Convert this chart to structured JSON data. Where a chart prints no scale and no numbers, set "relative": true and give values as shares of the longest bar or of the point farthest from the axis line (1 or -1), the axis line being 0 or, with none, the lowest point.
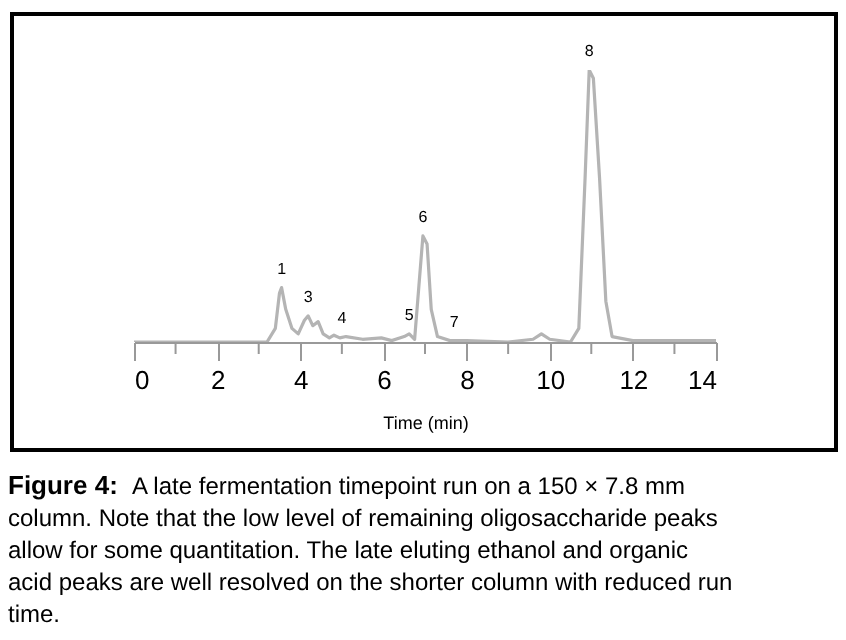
{
  "chart_data": {
    "type": "line",
    "relative": true,
    "xlabel": "Time (min)",
    "color": "#b4b4b4",
    "grid": false,
    "marker": "none",
    "line_style": "solid",
    "xlim": [
      0,
      14
    ],
    "xticks": [
      0,
      {
        "value": 1,
        "label": null
      },
      2,
      {
        "value": 3,
        "label": null
      },
      4,
      {
        "value": 5,
        "label": null
      },
      6,
      {
        "value": 7,
        "label": null
      },
      8,
      {
        "value": 9,
        "label": null
      },
      10,
      {
        "value": 11,
        "label": null
      },
      12,
      {
        "value": 13,
        "label": null
      },
      14
    ],
    "x": [
      0,
      3.2,
      3.4,
      3.5,
      3.55,
      3.65,
      3.8,
      3.95,
      4.1,
      4.19,
      4.3,
      4.43,
      4.55,
      4.7,
      4.81,
      4.95,
      5.1,
      5.5,
      5.95,
      6.2,
      6.5,
      6.62,
      6.75,
      6.85,
      6.95,
      7.05,
      7.15,
      7.3,
      7.6,
      8,
      9,
      9.6,
      9.8,
      10.0,
      10.5,
      10.7,
      10.85,
      10.95,
      11.05,
      11.2,
      11.35,
      11.5,
      12,
      14
    ],
    "values": [
      0,
      0,
      0.05,
      0.18,
      0.2,
      0.12,
      0.05,
      0.03,
      0.08,
      0.096,
      0.06,
      0.075,
      0.03,
      0.015,
      0.025,
      0.015,
      0.02,
      0.01,
      0.015,
      0.005,
      0.02,
      0.03,
      0.01,
      0.2,
      0.39,
      0.36,
      0.12,
      0.02,
      0.005,
      0.005,
      0,
      0.01,
      0.03,
      0.01,
      0,
      0.05,
      0.6,
      1.0,
      0.97,
      0.6,
      0.15,
      0.02,
      0.005,
      0.005
    ],
    "annotations": [
      {
        "text": "1",
        "x": 3.55,
        "y": 0.2
      },
      {
        "text": "3",
        "x": 4.19,
        "y": 0.096
      },
      {
        "text": "4",
        "x": 5.0,
        "y": 0.02
      },
      {
        "text": "5",
        "x": 6.62,
        "y": 0.03
      },
      {
        "text": "6",
        "x": 6.95,
        "y": 0.39
      },
      {
        "text": "7",
        "x": 7.7,
        "y": 0.005
      },
      {
        "text": "8",
        "x": 10.95,
        "y": 1.0
      },
      "Figure 4:",
      "A late fermentation timepoint run on a 150 × 7.8 mm column. Note that the low level of remaining oligosaccharide peaks allow for some quantitation. The late eluting ethanol and organic acid peaks are well resolved on the shorter column with reduced run time."
    ]
  }
}
